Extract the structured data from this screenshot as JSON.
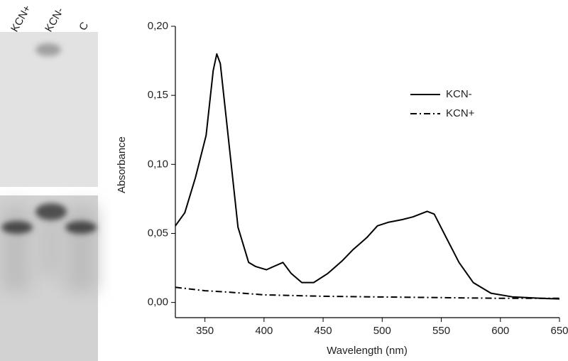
{
  "gel": {
    "lanes": [
      "KCN+",
      "KCN-",
      "C"
    ]
  },
  "chart_data": {
    "type": "line",
    "xlabel": "Wavelength (nm)",
    "ylabel": "Absorbance",
    "xlim": [
      325,
      650
    ],
    "ylim": [
      -0.011,
      0.2
    ],
    "xticks": [
      350,
      400,
      450,
      500,
      550,
      600,
      650
    ],
    "yticks": [
      {
        "value": 0,
        "label": "0,00"
      },
      {
        "value": 0.05,
        "label": "0,05"
      },
      {
        "value": 0.1,
        "label": "0,10"
      },
      {
        "value": 0.15,
        "label": "0,15"
      },
      {
        "value": 0.2,
        "label": "0,20"
      }
    ],
    "legend": "upper right",
    "series": [
      {
        "name": "KCN-",
        "color": "#000000",
        "dash": "solid",
        "x": [
          325,
          333,
          342,
          351,
          357,
          360,
          363,
          369,
          378,
          387,
          393,
          402,
          408,
          416,
          423,
          432,
          442,
          454,
          466,
          475,
          487,
          496,
          505,
          517,
          526,
          538,
          544,
          553,
          565,
          577,
          592,
          610,
          634,
          650
        ],
        "values": [
          0.0555,
          0.065,
          0.0905,
          0.121,
          0.168,
          0.18,
          0.173,
          0.126,
          0.0545,
          0.029,
          0.026,
          0.0237,
          0.026,
          0.029,
          0.021,
          0.0144,
          0.0144,
          0.021,
          0.03,
          0.038,
          0.047,
          0.0555,
          0.058,
          0.06,
          0.062,
          0.066,
          0.064,
          0.049,
          0.029,
          0.0144,
          0.0067,
          0.0041,
          0.003,
          0.0026
        ]
      },
      {
        "name": "KCN+",
        "color": "#000000",
        "dash": "dashdot",
        "x": [
          325,
          350,
          370,
          400,
          450,
          500,
          550,
          600,
          650
        ],
        "values": [
          0.011,
          0.0085,
          0.0075,
          0.0055,
          0.0045,
          0.004,
          0.0035,
          0.003,
          0.003
        ]
      }
    ]
  }
}
